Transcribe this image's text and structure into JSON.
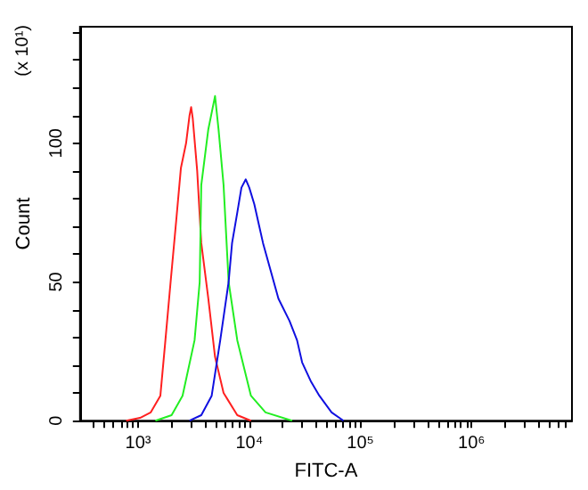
{
  "chart_data": {
    "type": "line",
    "xlabel": "FITC-A",
    "ylabel": "Count",
    "annotations": [
      "(x 10¹)"
    ],
    "log": "x",
    "grid": false,
    "marker": "none",
    "line_style": "solid",
    "xlim": [
      300,
      8000000
    ],
    "ylim": [
      0,
      142
    ],
    "xticks": [
      {
        "value": 400,
        "label": null
      },
      {
        "value": 500,
        "label": null
      },
      {
        "value": 600,
        "label": null
      },
      {
        "value": 700,
        "label": null
      },
      {
        "value": 800,
        "label": null
      },
      {
        "value": 900,
        "label": null
      },
      {
        "value": 1000,
        "label": "10³"
      },
      {
        "value": 2000,
        "label": null
      },
      {
        "value": 3000,
        "label": null
      },
      {
        "value": 4000,
        "label": null
      },
      {
        "value": 5000,
        "label": null
      },
      {
        "value": 6000,
        "label": null
      },
      {
        "value": 7000,
        "label": null
      },
      {
        "value": 8000,
        "label": null
      },
      {
        "value": 9000,
        "label": null
      },
      {
        "value": 10000,
        "label": "10⁴"
      },
      {
        "value": 20000,
        "label": null
      },
      {
        "value": 30000,
        "label": null
      },
      {
        "value": 40000,
        "label": null
      },
      {
        "value": 50000,
        "label": null
      },
      {
        "value": 60000,
        "label": null
      },
      {
        "value": 70000,
        "label": null
      },
      {
        "value": 80000,
        "label": null
      },
      {
        "value": 90000,
        "label": null
      },
      {
        "value": 100000,
        "label": "10⁵"
      },
      {
        "value": 200000,
        "label": null
      },
      {
        "value": 300000,
        "label": null
      },
      {
        "value": 400000,
        "label": null
      },
      {
        "value": 500000,
        "label": null
      },
      {
        "value": 600000,
        "label": null
      },
      {
        "value": 700000,
        "label": null
      },
      {
        "value": 800000,
        "label": null
      },
      {
        "value": 900000,
        "label": null
      },
      {
        "value": 1000000,
        "label": "10⁶"
      },
      {
        "value": 2000000,
        "label": null
      },
      {
        "value": 3000000,
        "label": null
      },
      {
        "value": 4000000,
        "label": null
      },
      {
        "value": 5000000,
        "label": null
      },
      {
        "value": 6000000,
        "label": null
      },
      {
        "value": 7000000,
        "label": null
      }
    ],
    "yticks": [
      0,
      {
        "value": 10,
        "label": null
      },
      {
        "value": 20,
        "label": null
      },
      {
        "value": 30,
        "label": null
      },
      {
        "value": 40,
        "label": null
      },
      50,
      {
        "value": 60,
        "label": null
      },
      {
        "value": 70,
        "label": null
      },
      {
        "value": 80,
        "label": null
      },
      {
        "value": 90,
        "label": null
      },
      100,
      {
        "value": 110,
        "label": null
      },
      {
        "value": 120,
        "label": null
      },
      {
        "value": 130,
        "label": null
      },
      {
        "value": 140,
        "label": null
      }
    ],
    "series": [
      {
        "color": "#ff2020",
        "x": [
          780,
          1040,
          1300,
          1585,
          1760,
          1960,
          2200,
          2425,
          2700,
          2900,
          3000,
          3100,
          3400,
          3700,
          4280,
          4920,
          5870,
          7800,
          10350
        ],
        "values": [
          0,
          1,
          3,
          9,
          29,
          50,
          72,
          91,
          100,
          110,
          113,
          109,
          90,
          64,
          44,
          23,
          10,
          2,
          0
        ]
      },
      {
        "color": "#22ee22",
        "x": [
          1430,
          2000,
          2510,
          3220,
          3580,
          3700,
          4280,
          4920,
          5290,
          5870,
          6520,
          7800,
          10350,
          14000,
          24300
        ],
        "values": [
          0,
          2,
          9,
          29,
          50,
          85,
          105,
          117,
          105,
          85,
          50,
          29,
          9,
          3,
          0
        ]
      },
      {
        "color": "#1010e0",
        "x": [
          2900,
          3700,
          4590,
          5480,
          6520,
          7000,
          7800,
          8500,
          9300,
          10000,
          11100,
          13300,
          18300,
          23000,
          26900,
          29900,
          36000,
          42700,
          55000,
          70400
        ],
        "values": [
          0,
          2,
          9,
          29,
          50,
          64,
          75,
          84,
          87,
          84,
          78,
          64,
          44,
          36,
          29,
          21,
          14,
          9,
          3,
          0
        ]
      }
    ]
  }
}
